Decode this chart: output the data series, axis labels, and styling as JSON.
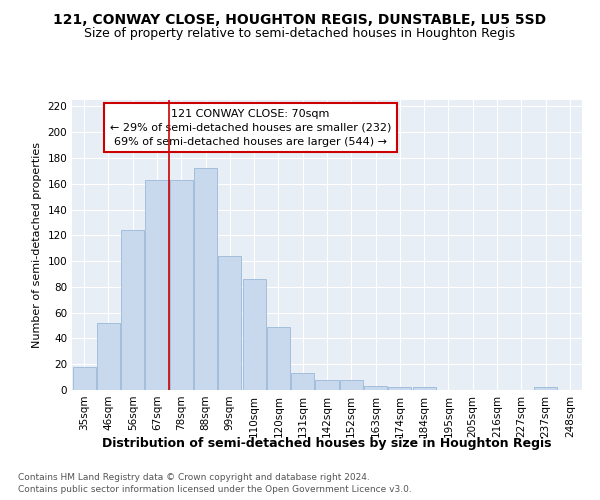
{
  "title1": "121, CONWAY CLOSE, HOUGHTON REGIS, DUNSTABLE, LU5 5SD",
  "title2": "Size of property relative to semi-detached houses in Houghton Regis",
  "xlabel": "Distribution of semi-detached houses by size in Houghton Regis",
  "ylabel": "Number of semi-detached properties",
  "categories": [
    "35sqm",
    "46sqm",
    "56sqm",
    "67sqm",
    "78sqm",
    "88sqm",
    "99sqm",
    "110sqm",
    "120sqm",
    "131sqm",
    "142sqm",
    "152sqm",
    "163sqm",
    "174sqm",
    "184sqm",
    "195sqm",
    "205sqm",
    "216sqm",
    "227sqm",
    "237sqm",
    "248sqm"
  ],
  "values": [
    18,
    52,
    124,
    163,
    163,
    172,
    104,
    86,
    49,
    13,
    8,
    8,
    3,
    2,
    2,
    0,
    0,
    0,
    0,
    2,
    0
  ],
  "bar_color": "#c8d9ed",
  "bar_edge_color": "#9ab8d8",
  "red_line_x": 3.5,
  "annotation_title": "121 CONWAY CLOSE: 70sqm",
  "annotation_line1": "← 29% of semi-detached houses are smaller (232)",
  "annotation_line2": "69% of semi-detached houses are larger (544) →",
  "annotation_box_color": "#ffffff",
  "annotation_box_edge": "#cc0000",
  "ylim": [
    0,
    225
  ],
  "yticks": [
    0,
    20,
    40,
    60,
    80,
    100,
    120,
    140,
    160,
    180,
    200,
    220
  ],
  "footer1": "Contains HM Land Registry data © Crown copyright and database right 2024.",
  "footer2": "Contains public sector information licensed under the Open Government Licence v3.0.",
  "bg_color": "#ffffff",
  "plot_bg_color": "#e8eef5",
  "grid_color": "#ffffff",
  "title1_fontsize": 10,
  "title2_fontsize": 9,
  "xlabel_fontsize": 9,
  "ylabel_fontsize": 8,
  "tick_fontsize": 7.5,
  "ann_fontsize": 8,
  "footer_fontsize": 6.5
}
